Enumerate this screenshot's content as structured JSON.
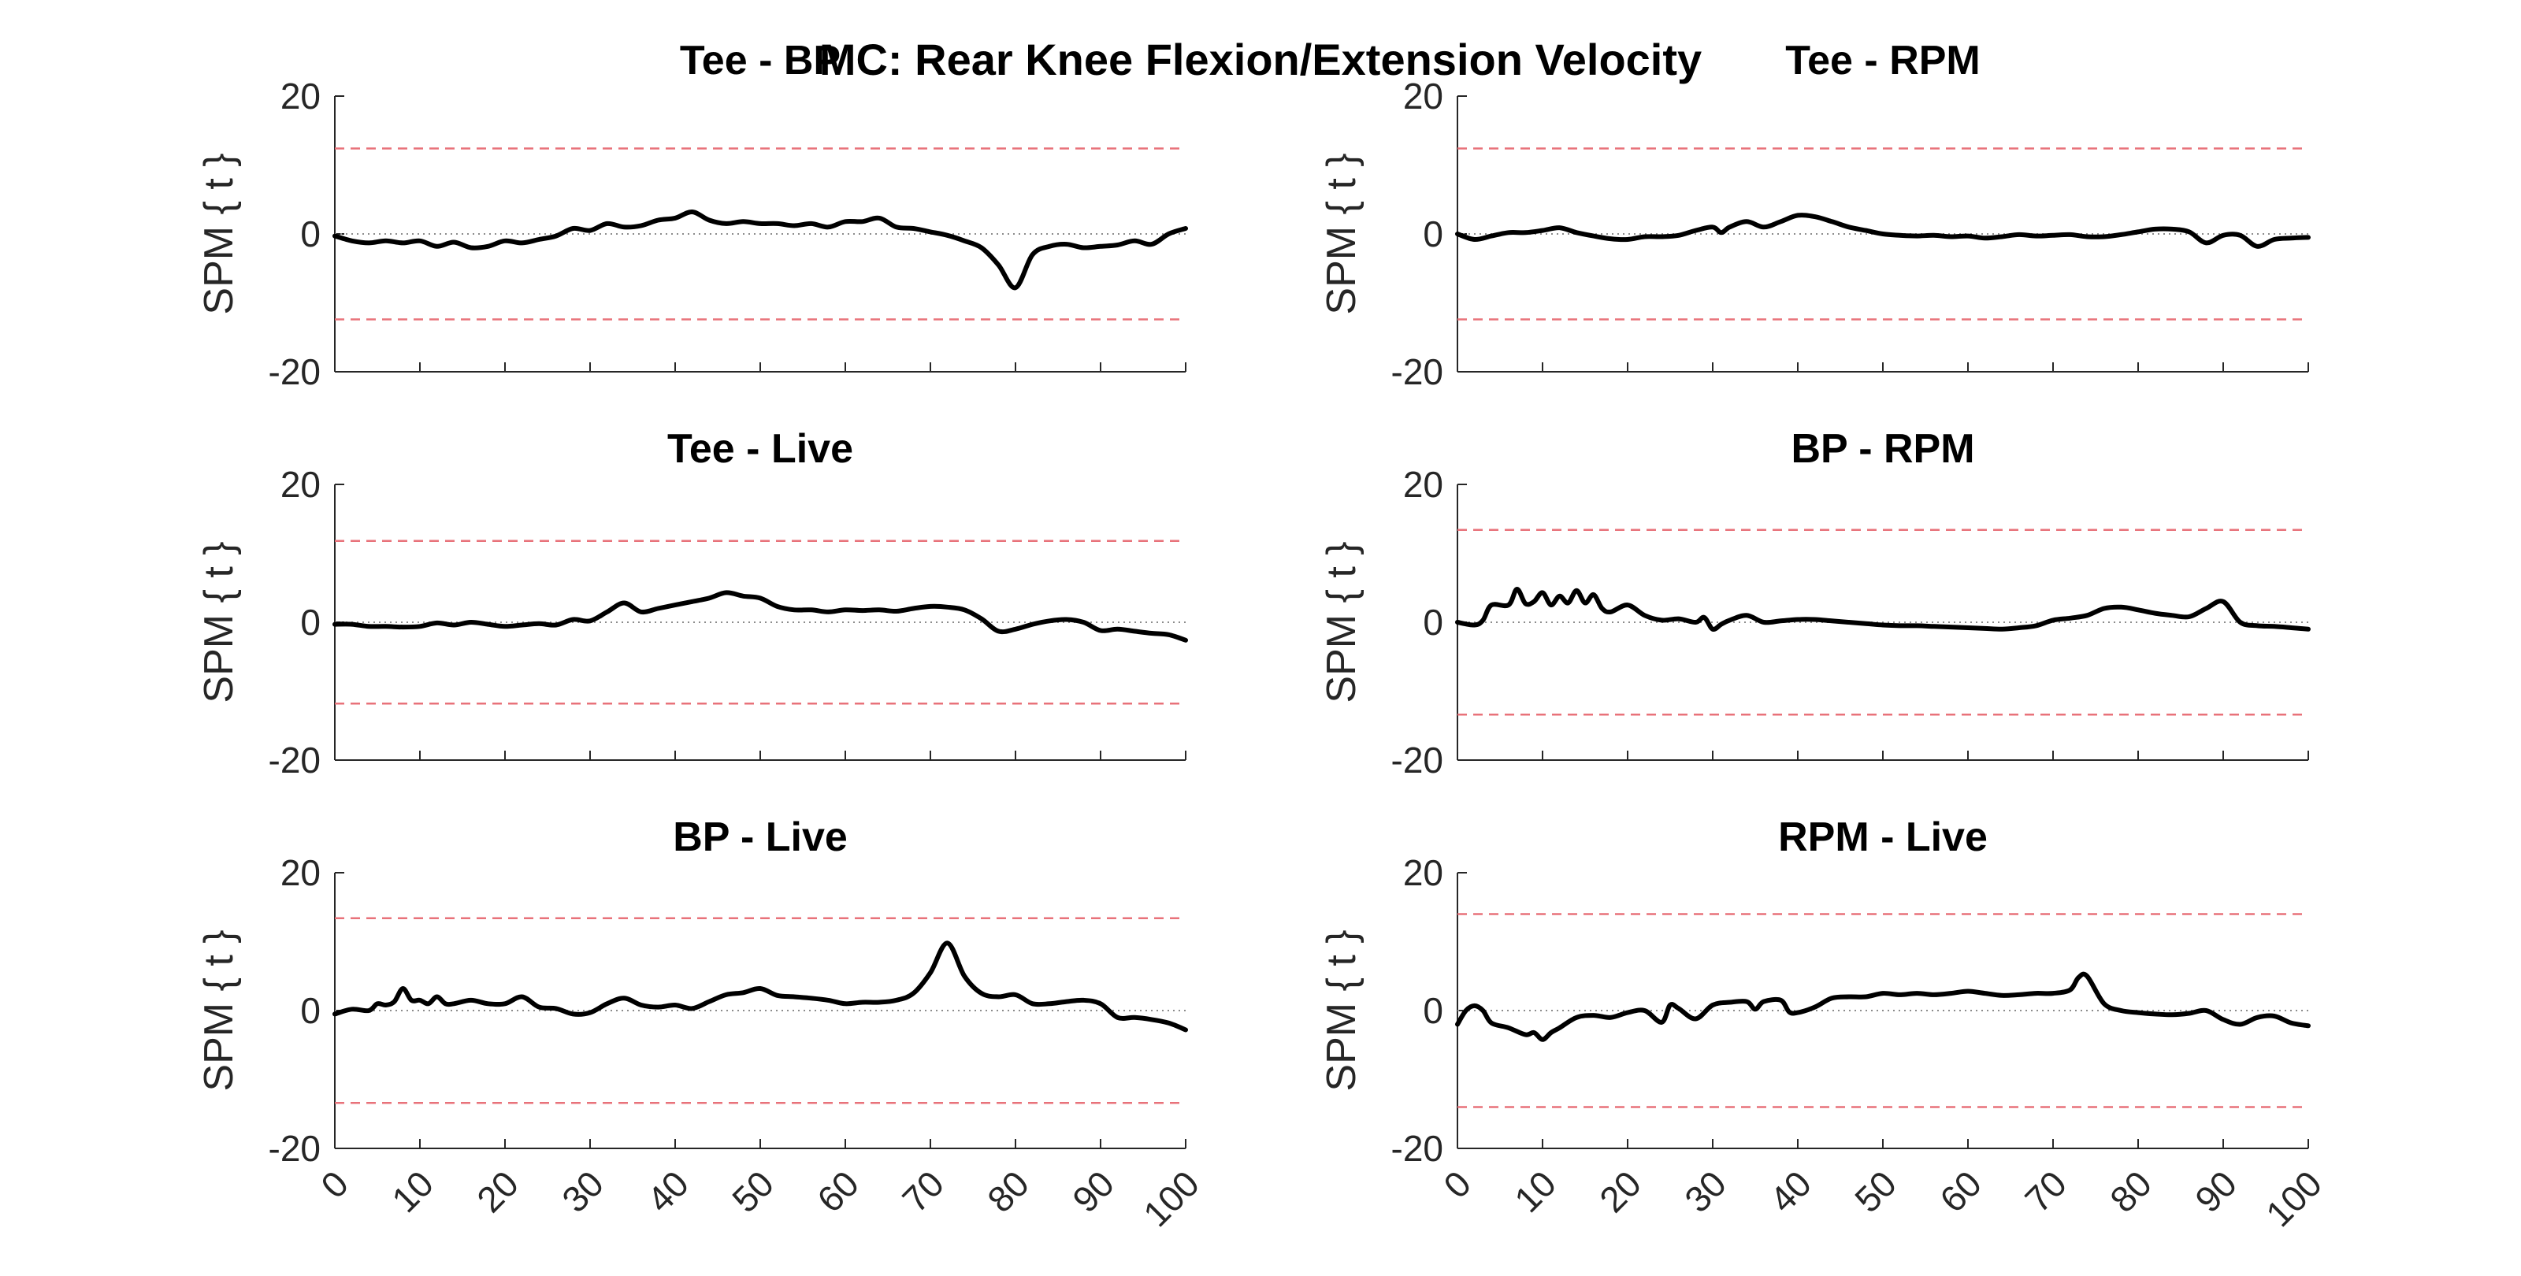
{
  "figure": {
    "title": "MC: Rear Knee Flexion/Extension Velocity"
  },
  "chart_data": [
    {
      "type": "line",
      "title": "Tee - BP",
      "ylabel": "SPM { t }",
      "xlim": [
        0,
        100
      ],
      "ylim": [
        -20,
        20
      ],
      "yticks": [
        -20,
        0,
        20
      ],
      "xticks": [
        0,
        10,
        20,
        30,
        40,
        50,
        60,
        70,
        80,
        90,
        100
      ],
      "threshold": 12.4,
      "series": [
        {
          "x": [
            0,
            2,
            4,
            6,
            8,
            10,
            12,
            14,
            16,
            18,
            20,
            22,
            24,
            26,
            28,
            30,
            32,
            34,
            36,
            38,
            40,
            42,
            44,
            46,
            48,
            50,
            52,
            54,
            56,
            58,
            60,
            62,
            64,
            66,
            68,
            70,
            72,
            74,
            76,
            78,
            80,
            82,
            84,
            86,
            88,
            90,
            92,
            94,
            96,
            98,
            100
          ],
          "values": [
            -0.3,
            -1.0,
            -1.3,
            -1.0,
            -1.3,
            -1.0,
            -1.8,
            -1.2,
            -2.0,
            -1.8,
            -1.0,
            -1.3,
            -0.8,
            -0.3,
            0.8,
            0.5,
            1.5,
            1.0,
            1.2,
            2.0,
            2.3,
            3.2,
            2.0,
            1.5,
            1.8,
            1.5,
            1.5,
            1.2,
            1.5,
            1.0,
            1.8,
            1.8,
            2.3,
            1.0,
            0.8,
            0.3,
            -0.2,
            -1.0,
            -2.0,
            -4.5,
            -7.8,
            -3.0,
            -1.8,
            -1.5,
            -2.0,
            -1.8,
            -1.6,
            -1.0,
            -1.5,
            0.0,
            0.8
          ]
        }
      ]
    },
    {
      "type": "line",
      "title": "Tee - RPM",
      "ylabel": "SPM { t }",
      "xlim": [
        0,
        100
      ],
      "ylim": [
        -20,
        20
      ],
      "yticks": [
        -20,
        0,
        20
      ],
      "xticks": [
        0,
        10,
        20,
        30,
        40,
        50,
        60,
        70,
        80,
        90,
        100
      ],
      "threshold": 12.4,
      "series": [
        {
          "x": [
            0,
            2,
            4,
            6,
            8,
            10,
            12,
            14,
            16,
            18,
            20,
            22,
            24,
            26,
            28,
            30,
            31,
            32,
            34,
            36,
            38,
            40,
            42,
            44,
            46,
            48,
            50,
            52,
            54,
            56,
            58,
            60,
            62,
            64,
            66,
            68,
            70,
            72,
            74,
            76,
            78,
            80,
            82,
            84,
            86,
            88,
            90,
            92,
            94,
            96,
            98,
            100
          ],
          "values": [
            0.0,
            -0.8,
            -0.3,
            0.2,
            0.2,
            0.5,
            0.9,
            0.2,
            -0.3,
            -0.7,
            -0.8,
            -0.4,
            -0.4,
            -0.2,
            0.5,
            1.0,
            0.2,
            1.0,
            1.8,
            1.0,
            1.8,
            2.7,
            2.5,
            1.8,
            1.0,
            0.5,
            0.0,
            -0.2,
            -0.3,
            -0.2,
            -0.4,
            -0.3,
            -0.6,
            -0.4,
            -0.1,
            -0.3,
            -0.2,
            -0.1,
            -0.4,
            -0.4,
            -0.1,
            0.3,
            0.7,
            0.7,
            0.3,
            -1.3,
            -0.2,
            -0.2,
            -1.8,
            -0.8,
            -0.6,
            -0.5
          ]
        }
      ]
    },
    {
      "type": "line",
      "title": "Tee - Live",
      "ylabel": "SPM { t }",
      "xlim": [
        0,
        100
      ],
      "ylim": [
        -20,
        20
      ],
      "yticks": [
        -20,
        0,
        20
      ],
      "xticks": [
        0,
        10,
        20,
        30,
        40,
        50,
        60,
        70,
        80,
        90,
        100
      ],
      "threshold": 11.8,
      "series": [
        {
          "x": [
            0,
            2,
            4,
            6,
            8,
            10,
            12,
            14,
            16,
            18,
            20,
            22,
            24,
            26,
            28,
            30,
            32,
            34,
            36,
            38,
            40,
            42,
            44,
            46,
            48,
            50,
            52,
            54,
            56,
            58,
            60,
            62,
            64,
            66,
            68,
            70,
            72,
            74,
            76,
            78,
            80,
            82,
            84,
            86,
            88,
            90,
            92,
            94,
            96,
            98,
            100
          ],
          "values": [
            -0.3,
            -0.3,
            -0.6,
            -0.6,
            -0.7,
            -0.6,
            -0.1,
            -0.4,
            0.0,
            -0.3,
            -0.6,
            -0.4,
            -0.2,
            -0.4,
            0.4,
            0.2,
            1.5,
            2.8,
            1.5,
            2.0,
            2.5,
            3.0,
            3.5,
            4.3,
            3.8,
            3.5,
            2.3,
            1.8,
            1.8,
            1.5,
            1.8,
            1.7,
            1.8,
            1.6,
            2.0,
            2.3,
            2.2,
            1.8,
            0.5,
            -1.3,
            -1.0,
            -0.3,
            0.2,
            0.4,
            0.0,
            -1.2,
            -1.0,
            -1.3,
            -1.6,
            -1.8,
            -2.6
          ]
        }
      ]
    },
    {
      "type": "line",
      "title": "BP - RPM",
      "ylabel": "SPM { t }",
      "xlim": [
        0,
        100
      ],
      "ylim": [
        -20,
        20
      ],
      "yticks": [
        -20,
        0,
        20
      ],
      "xticks": [
        0,
        10,
        20,
        30,
        40,
        50,
        60,
        70,
        80,
        90,
        100
      ],
      "threshold": 13.4,
      "series": [
        {
          "x": [
            0,
            2,
            3,
            4,
            6,
            7,
            8,
            9,
            10,
            11,
            12,
            13,
            14,
            15,
            16,
            17,
            18,
            20,
            22,
            24,
            26,
            28,
            29,
            30,
            31,
            32,
            34,
            36,
            38,
            40,
            42,
            44,
            46,
            48,
            50,
            52,
            54,
            56,
            58,
            60,
            62,
            64,
            66,
            68,
            70,
            72,
            74,
            76,
            78,
            80,
            82,
            84,
            86,
            88,
            90,
            92,
            94,
            96,
            98,
            100
          ],
          "values": [
            0.0,
            -0.4,
            0.3,
            2.5,
            2.5,
            4.8,
            2.7,
            3.0,
            4.3,
            2.5,
            3.8,
            2.8,
            4.6,
            2.8,
            4.0,
            2.0,
            1.5,
            2.5,
            1.0,
            0.3,
            0.5,
            0.0,
            0.7,
            -1.0,
            -0.3,
            0.3,
            1.0,
            0.0,
            0.2,
            0.4,
            0.4,
            0.2,
            0.0,
            -0.2,
            -0.4,
            -0.5,
            -0.5,
            -0.6,
            -0.7,
            -0.8,
            -0.9,
            -1.0,
            -0.8,
            -0.5,
            0.3,
            0.6,
            1.0,
            2.0,
            2.2,
            1.8,
            1.3,
            1.0,
            0.8,
            2.0,
            3.0,
            0.0,
            -0.5,
            -0.6,
            -0.8,
            -1.0
          ]
        }
      ]
    },
    {
      "type": "line",
      "title": "BP - Live",
      "ylabel": "SPM { t }",
      "xlim": [
        0,
        100
      ],
      "ylim": [
        -20,
        20
      ],
      "yticks": [
        -20,
        0,
        20
      ],
      "xticks": [
        0,
        10,
        20,
        30,
        40,
        50,
        60,
        70,
        80,
        90,
        100
      ],
      "threshold": 13.4,
      "series": [
        {
          "x": [
            0,
            2,
            4,
            5,
            6,
            7,
            8,
            9,
            10,
            11,
            12,
            13,
            14,
            16,
            18,
            20,
            22,
            24,
            26,
            28,
            30,
            32,
            34,
            36,
            38,
            40,
            42,
            44,
            46,
            48,
            50,
            52,
            54,
            56,
            58,
            60,
            62,
            64,
            66,
            68,
            70,
            72,
            74,
            76,
            78,
            80,
            82,
            84,
            86,
            88,
            90,
            92,
            94,
            96,
            98,
            100
          ],
          "values": [
            -0.5,
            0.2,
            0.0,
            1.0,
            0.8,
            1.3,
            3.2,
            1.5,
            1.5,
            1.0,
            2.0,
            1.0,
            1.0,
            1.5,
            1.0,
            1.0,
            2.0,
            0.5,
            0.3,
            -0.5,
            -0.3,
            1.0,
            1.8,
            0.8,
            0.5,
            0.8,
            0.3,
            1.3,
            2.3,
            2.6,
            3.2,
            2.2,
            2.0,
            1.8,
            1.5,
            1.0,
            1.2,
            1.2,
            1.5,
            2.5,
            5.5,
            9.8,
            5.0,
            2.5,
            2.0,
            2.3,
            1.0,
            1.0,
            1.3,
            1.5,
            1.0,
            -1.0,
            -1.0,
            -1.3,
            -1.8,
            -2.8
          ]
        }
      ]
    },
    {
      "type": "line",
      "title": "RPM - Live",
      "ylabel": "SPM { t }",
      "xlim": [
        0,
        100
      ],
      "ylim": [
        -20,
        20
      ],
      "yticks": [
        -20,
        0,
        20
      ],
      "xticks": [
        0,
        10,
        20,
        30,
        40,
        50,
        60,
        70,
        80,
        90,
        100
      ],
      "threshold": 14.0,
      "series": [
        {
          "x": [
            0,
            1,
            2,
            3,
            4,
            6,
            8,
            9,
            10,
            11,
            12,
            14,
            16,
            18,
            20,
            22,
            24,
            25,
            26,
            28,
            30,
            32,
            34,
            35,
            36,
            38,
            39,
            40,
            42,
            44,
            46,
            48,
            50,
            52,
            54,
            56,
            58,
            60,
            62,
            64,
            66,
            68,
            70,
            72,
            73,
            74,
            76,
            78,
            80,
            82,
            84,
            86,
            88,
            90,
            92,
            94,
            96,
            98,
            100
          ],
          "values": [
            -2.0,
            0.0,
            0.7,
            0.0,
            -1.8,
            -2.5,
            -3.5,
            -3.2,
            -4.2,
            -3.2,
            -2.5,
            -1.0,
            -0.7,
            -1.0,
            -0.3,
            0.0,
            -1.7,
            0.8,
            0.3,
            -1.2,
            0.8,
            1.2,
            1.3,
            0.2,
            1.3,
            1.5,
            -0.2,
            -0.3,
            0.5,
            1.8,
            2.0,
            2.0,
            2.5,
            2.3,
            2.5,
            2.3,
            2.5,
            2.8,
            2.5,
            2.2,
            2.3,
            2.5,
            2.5,
            3.0,
            4.8,
            5.0,
            1.0,
            0.0,
            -0.3,
            -0.5,
            -0.6,
            -0.4,
            0.0,
            -1.3,
            -2.0,
            -1.0,
            -0.8,
            -1.8,
            -2.2
          ]
        }
      ]
    }
  ]
}
